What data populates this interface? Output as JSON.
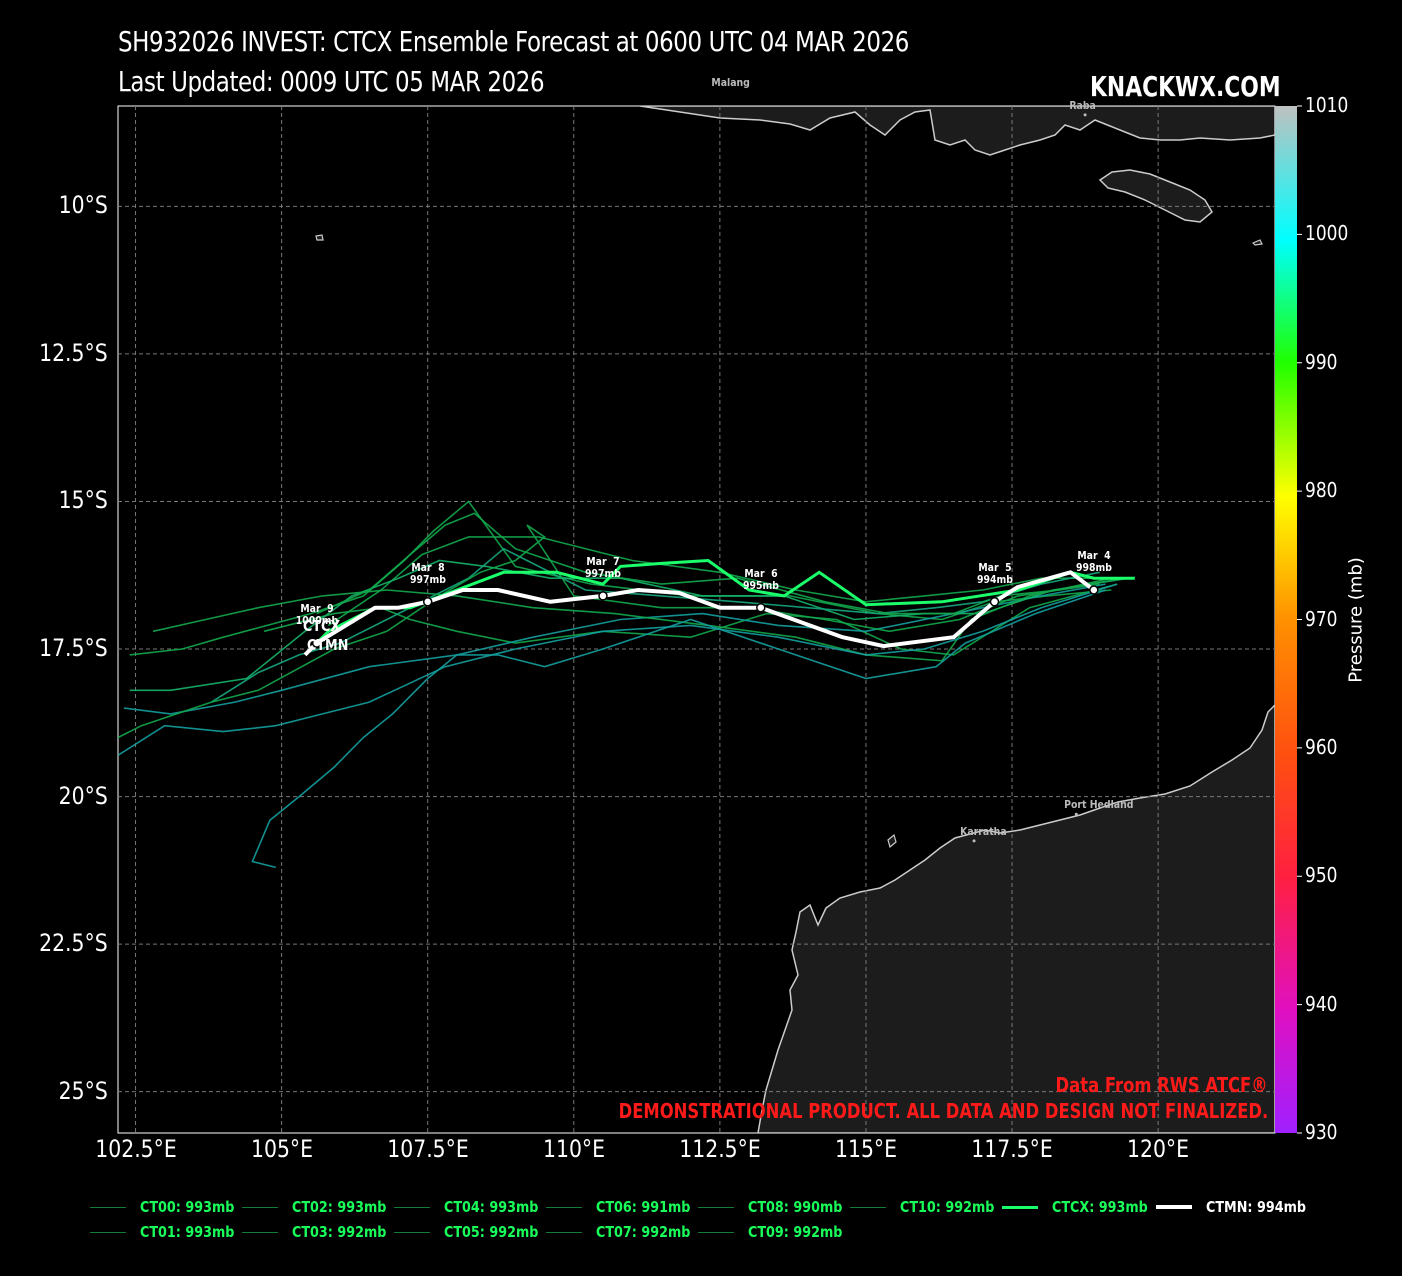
{
  "header": {
    "title_line1": "SH932026 INVEST: CTCX Ensemble Forecast at 0600 UTC 04 MAR 2026",
    "title_line2": "Last Updated: 0009 UTC 05 MAR 2026",
    "brand": "KNACKWX.COM"
  },
  "map": {
    "lon_range": [
      102.2,
      122.0
    ],
    "lat_range": [
      -25.7,
      -8.3
    ],
    "lat_ticks": [
      "10°S",
      "12.5°S",
      "15°S",
      "17.5°S",
      "20°S",
      "22.5°S",
      "25°S"
    ],
    "lon_ticks": [
      "102.5°E",
      "105°E",
      "107.5°E",
      "110°E",
      "112.5°E",
      "115°E",
      "117.5°E",
      "120°E"
    ],
    "grid": "on",
    "land_color": "#1c1c1c",
    "coast_color": "#cccccc",
    "cities": [
      {
        "name": "Malang",
        "lon": 112.6,
        "lat": -7.95
      },
      {
        "name": "Raba",
        "lon": 118.75,
        "lat": -8.45
      },
      {
        "name": "Karratha",
        "lon": 116.85,
        "lat": -20.75
      },
      {
        "name": "Port Hedland",
        "lon": 118.6,
        "lat": -20.3
      }
    ]
  },
  "colorbar": {
    "title": "Pressure (mb)",
    "ticks": [
      "1010",
      "1000",
      "990",
      "980",
      "970",
      "960",
      "950",
      "940",
      "930"
    ],
    "range_mb": [
      930,
      1010
    ]
  },
  "chart_data": {
    "type": "line",
    "mean_track": {
      "name": "CTMN",
      "color": "#ffffff",
      "points": [
        [
          118.9,
          -16.5
        ],
        [
          118.5,
          -16.2
        ],
        [
          117.6,
          -16.45
        ],
        [
          117.2,
          -16.7
        ],
        [
          116.5,
          -17.3
        ],
        [
          115.3,
          -17.45
        ],
        [
          114.6,
          -17.3
        ],
        [
          113.2,
          -16.8
        ],
        [
          112.5,
          -16.8
        ],
        [
          111.8,
          -16.55
        ],
        [
          111.1,
          -16.5
        ],
        [
          110.5,
          -16.6
        ],
        [
          109.6,
          -16.7
        ],
        [
          108.7,
          -16.5
        ],
        [
          108.1,
          -16.5
        ],
        [
          107.5,
          -16.7
        ],
        [
          107.0,
          -16.8
        ],
        [
          106.6,
          -16.8
        ],
        [
          105.6,
          -17.4
        ],
        [
          105.4,
          -17.6
        ]
      ],
      "day_markers": [
        {
          "label": "Mar  4\n998mb",
          "lon": 118.9,
          "lat": -16.5
        },
        {
          "label": "Mar  5\n994mb",
          "lon": 117.2,
          "lat": -16.7
        },
        {
          "label": "Mar  6\n995mb",
          "lon": 113.2,
          "lat": -16.8
        },
        {
          "label": "Mar  7\n997mb",
          "lon": 110.5,
          "lat": -16.6
        },
        {
          "label": "Mar  8\n997mb",
          "lon": 107.5,
          "lat": -16.7
        },
        {
          "label": "Mar  9\n1000mb",
          "lon": 105.6,
          "lat": -17.4
        }
      ]
    },
    "control_track": {
      "name": "CTCX",
      "color": "#1aff6a",
      "points": [
        [
          119.6,
          -16.3
        ],
        [
          118.9,
          -16.3
        ],
        [
          118.5,
          -16.2
        ],
        [
          117.6,
          -16.5
        ],
        [
          116.3,
          -16.7
        ],
        [
          115.0,
          -16.75
        ],
        [
          114.2,
          -16.2
        ],
        [
          113.6,
          -16.6
        ],
        [
          113.0,
          -16.5
        ],
        [
          112.3,
          -16.0
        ],
        [
          111.5,
          -16.05
        ],
        [
          110.8,
          -16.1
        ],
        [
          110.5,
          -16.4
        ],
        [
          109.7,
          -16.2
        ],
        [
          108.8,
          -16.2
        ],
        [
          108.0,
          -16.5
        ],
        [
          107.2,
          -16.8
        ],
        [
          106.6,
          -16.8
        ],
        [
          105.8,
          -17.2
        ],
        [
          105.5,
          -17.5
        ]
      ]
    },
    "members": [
      {
        "name": "CT00",
        "pressure_mb": 993,
        "color": "#12a84c",
        "points": [
          [
            119.4,
            -16.3
          ],
          [
            118.0,
            -16.3
          ],
          [
            117.0,
            -16.5
          ],
          [
            116.0,
            -16.6
          ],
          [
            115.0,
            -16.7
          ],
          [
            113.8,
            -16.5
          ],
          [
            112.5,
            -16.2
          ],
          [
            111.0,
            -16.0
          ],
          [
            109.4,
            -15.6
          ],
          [
            108.2,
            -15.6
          ],
          [
            107.4,
            -15.9
          ],
          [
            106.7,
            -16.5
          ],
          [
            105.8,
            -17.1
          ]
        ]
      },
      {
        "name": "CT01",
        "pressure_mb": 993,
        "color": "#12a84c",
        "points": [
          [
            119.3,
            -16.4
          ],
          [
            117.8,
            -16.8
          ],
          [
            116.5,
            -17.6
          ],
          [
            115.6,
            -17.5
          ],
          [
            114.5,
            -17.0
          ],
          [
            113.3,
            -16.9
          ],
          [
            112.0,
            -17.3
          ],
          [
            110.5,
            -17.2
          ],
          [
            109.0,
            -17.4
          ],
          [
            108.0,
            -17.2
          ],
          [
            107.2,
            -17.0
          ],
          [
            106.7,
            -16.8
          ],
          [
            105.9,
            -16.9
          ],
          [
            104.7,
            -17.2
          ]
        ]
      },
      {
        "name": "CT02",
        "pressure_mb": 993,
        "color": "#12a84c",
        "points": [
          [
            119.2,
            -16.5
          ],
          [
            118.1,
            -16.6
          ],
          [
            117.2,
            -16.7
          ],
          [
            116.3,
            -17.0
          ],
          [
            115.2,
            -16.9
          ],
          [
            113.7,
            -16.6
          ],
          [
            112.0,
            -16.6
          ],
          [
            110.3,
            -16.4
          ],
          [
            109.0,
            -16.1
          ],
          [
            108.2,
            -15.0
          ],
          [
            107.6,
            -15.5
          ],
          [
            107.1,
            -16.0
          ],
          [
            106.4,
            -16.6
          ],
          [
            105.5,
            -16.9
          ],
          [
            104.0,
            -17.3
          ],
          [
            103.3,
            -17.5
          ],
          [
            102.4,
            -17.6
          ]
        ]
      },
      {
        "name": "CT03",
        "pressure_mb": 992,
        "color": "#14a0a0",
        "points": [
          [
            119.1,
            -16.4
          ],
          [
            118.0,
            -16.6
          ],
          [
            116.5,
            -16.9
          ],
          [
            115.0,
            -17.2
          ],
          [
            113.5,
            -17.1
          ],
          [
            112.2,
            -16.9
          ],
          [
            110.8,
            -17.0
          ],
          [
            109.3,
            -17.3
          ],
          [
            108.0,
            -17.6
          ],
          [
            106.5,
            -17.8
          ],
          [
            105.0,
            -18.2
          ],
          [
            104.2,
            -18.4
          ],
          [
            103.1,
            -18.6
          ],
          [
            102.3,
            -18.5
          ]
        ]
      },
      {
        "name": "CT04",
        "pressure_mb": 993,
        "color": "#15b46a",
        "points": [
          [
            119.5,
            -16.3
          ],
          [
            118.2,
            -16.5
          ],
          [
            117.0,
            -16.9
          ],
          [
            116.0,
            -16.9
          ],
          [
            114.8,
            -17.0
          ],
          [
            113.6,
            -16.6
          ],
          [
            112.2,
            -16.6
          ],
          [
            110.8,
            -16.3
          ],
          [
            109.6,
            -16.3
          ],
          [
            108.5,
            -16.1
          ],
          [
            107.7,
            -16.0
          ],
          [
            107.0,
            -16.3
          ],
          [
            106.2,
            -16.6
          ],
          [
            105.4,
            -17.2
          ],
          [
            104.4,
            -18.0
          ],
          [
            103.1,
            -18.2
          ],
          [
            102.4,
            -18.2
          ]
        ]
      },
      {
        "name": "CT05",
        "pressure_mb": 992,
        "color": "#15a880",
        "points": [
          [
            119.0,
            -16.2
          ],
          [
            118.0,
            -16.4
          ],
          [
            117.0,
            -16.7
          ],
          [
            116.2,
            -16.8
          ],
          [
            115.2,
            -16.9
          ],
          [
            114.0,
            -16.8
          ],
          [
            112.8,
            -16.7
          ],
          [
            111.5,
            -16.6
          ],
          [
            110.2,
            -16.5
          ],
          [
            109.2,
            -16.0
          ],
          [
            108.8,
            -15.8
          ],
          [
            108.2,
            -16.3
          ],
          [
            107.6,
            -16.6
          ],
          [
            106.8,
            -17.0
          ],
          [
            106.0,
            -17.4
          ],
          [
            105.3,
            -17.6
          ],
          [
            104.6,
            -17.9
          ],
          [
            103.8,
            -18.4
          ]
        ]
      },
      {
        "name": "CT06",
        "pressure_mb": 991,
        "color": "#12a84c",
        "points": [
          [
            119.2,
            -16.3
          ],
          [
            117.8,
            -16.6
          ],
          [
            116.8,
            -17.0
          ],
          [
            116.3,
            -17.7
          ],
          [
            115.0,
            -17.6
          ],
          [
            113.8,
            -17.3
          ],
          [
            112.3,
            -17.1
          ],
          [
            110.7,
            -16.9
          ],
          [
            109.3,
            -16.8
          ],
          [
            108.0,
            -16.6
          ],
          [
            106.8,
            -16.5
          ],
          [
            105.7,
            -16.6
          ],
          [
            104.6,
            -16.8
          ],
          [
            103.7,
            -17.0
          ],
          [
            102.8,
            -17.2
          ]
        ]
      },
      {
        "name": "CT07",
        "pressure_mb": 992,
        "color": "#14a0a0",
        "points": [
          [
            119.3,
            -16.4
          ],
          [
            118.0,
            -16.8
          ],
          [
            117.0,
            -17.2
          ],
          [
            116.0,
            -17.5
          ],
          [
            115.0,
            -17.6
          ],
          [
            113.5,
            -17.3
          ],
          [
            112.0,
            -17.1
          ],
          [
            110.5,
            -17.2
          ],
          [
            109.0,
            -17.5
          ],
          [
            107.8,
            -17.8
          ],
          [
            106.5,
            -18.4
          ],
          [
            105.7,
            -18.6
          ],
          [
            104.9,
            -18.8
          ],
          [
            104.0,
            -18.9
          ],
          [
            103.0,
            -18.8
          ],
          [
            102.2,
            -19.3
          ]
        ]
      },
      {
        "name": "CT08",
        "pressure_mb": 990,
        "color": "#12a84c",
        "points": [
          [
            119.4,
            -16.3
          ],
          [
            118.3,
            -16.5
          ],
          [
            117.3,
            -16.6
          ],
          [
            116.5,
            -16.9
          ],
          [
            115.4,
            -16.9
          ],
          [
            114.3,
            -16.7
          ],
          [
            112.8,
            -16.3
          ],
          [
            111.5,
            -16.4
          ],
          [
            110.2,
            -16.2
          ],
          [
            109.0,
            -15.8
          ],
          [
            108.3,
            -15.2
          ],
          [
            107.8,
            -15.4
          ],
          [
            107.2,
            -15.9
          ],
          [
            106.5,
            -16.5
          ],
          [
            105.6,
            -16.9
          ]
        ]
      },
      {
        "name": "CT09",
        "pressure_mb": 992,
        "color": "#14a0a0",
        "points": [
          [
            119.1,
            -16.5
          ],
          [
            117.9,
            -16.9
          ],
          [
            116.7,
            -17.4
          ],
          [
            116.2,
            -17.8
          ],
          [
            115.0,
            -18.0
          ],
          [
            113.5,
            -17.5
          ],
          [
            112.0,
            -17.0
          ],
          [
            110.5,
            -17.5
          ],
          [
            109.5,
            -17.8
          ],
          [
            108.7,
            -17.6
          ],
          [
            108.0,
            -17.6
          ],
          [
            107.5,
            -18.0
          ],
          [
            106.9,
            -18.6
          ],
          [
            106.4,
            -19.0
          ],
          [
            105.9,
            -19.5
          ],
          [
            105.3,
            -20.0
          ],
          [
            104.8,
            -20.4
          ],
          [
            104.5,
            -21.1
          ],
          [
            104.9,
            -21.2
          ]
        ]
      },
      {
        "name": "CT10",
        "pressure_mb": 992,
        "color": "#12a84c",
        "points": [
          [
            119.0,
            -16.4
          ],
          [
            117.6,
            -16.6
          ],
          [
            116.6,
            -17.0
          ],
          [
            115.4,
            -17.2
          ],
          [
            114.3,
            -17.0
          ],
          [
            113.0,
            -16.8
          ],
          [
            111.5,
            -16.8
          ],
          [
            110.0,
            -16.6
          ],
          [
            109.2,
            -15.4
          ],
          [
            109.5,
            -15.6
          ],
          [
            109.0,
            -16.0
          ],
          [
            108.4,
            -16.2
          ],
          [
            107.7,
            -16.6
          ],
          [
            106.8,
            -17.2
          ],
          [
            105.9,
            -17.5
          ],
          [
            104.6,
            -18.2
          ],
          [
            103.8,
            -18.4
          ],
          [
            102.6,
            -18.8
          ],
          [
            102.2,
            -19.0
          ]
        ]
      }
    ]
  },
  "labels": {
    "ctcx_end": "CTCX",
    "ctmn_end": "CTMN"
  },
  "legend": [
    {
      "name": "CT00",
      "text": "CT00: 993mb"
    },
    {
      "name": "CT02",
      "text": "CT02: 993mb"
    },
    {
      "name": "CT04",
      "text": "CT04: 993mb"
    },
    {
      "name": "CT06",
      "text": "CT06: 991mb"
    },
    {
      "name": "CT08",
      "text": "CT08: 990mb"
    },
    {
      "name": "CT10",
      "text": "CT10: 992mb"
    },
    {
      "name": "CTCX",
      "text": "CTCX: 993mb"
    },
    {
      "name": "CTMN",
      "text": "CTMN: 994mb"
    },
    {
      "name": "CT01",
      "text": "CT01: 993mb"
    },
    {
      "name": "CT03",
      "text": "CT03: 992mb"
    },
    {
      "name": "CT05",
      "text": "CT05: 992mb"
    },
    {
      "name": "CT07",
      "text": "CT07: 992mb"
    },
    {
      "name": "CT09",
      "text": "CT09: 992mb"
    }
  ],
  "notes": {
    "source": "Data From RWS ATCF®",
    "disclaimer": "DEMONSTRATIONAL PRODUCT. ALL DATA AND DESIGN NOT FINALIZED."
  }
}
